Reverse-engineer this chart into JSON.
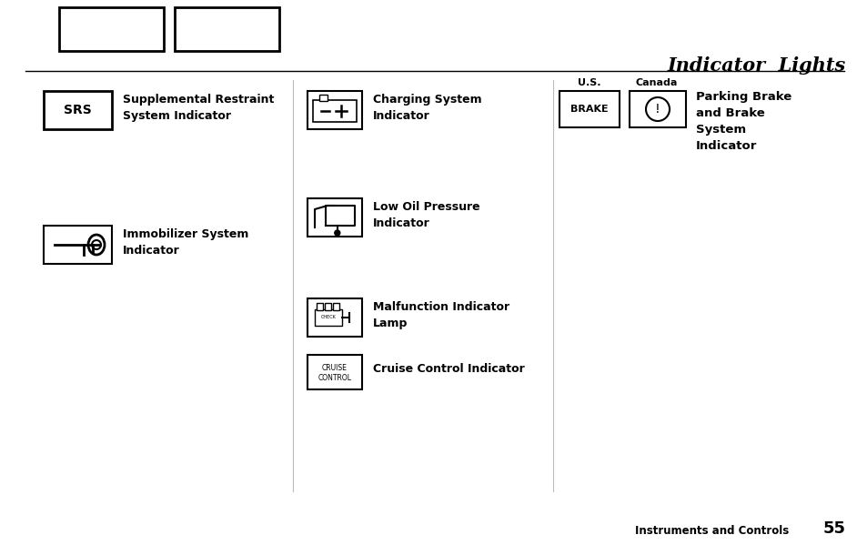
{
  "title": "Indicator  Lights",
  "bg_color": "#ffffff",
  "footer_text": "Instruments and Controls",
  "footer_number": "55",
  "figsize": [
    9.54,
    6.1
  ],
  "dpi": 100
}
